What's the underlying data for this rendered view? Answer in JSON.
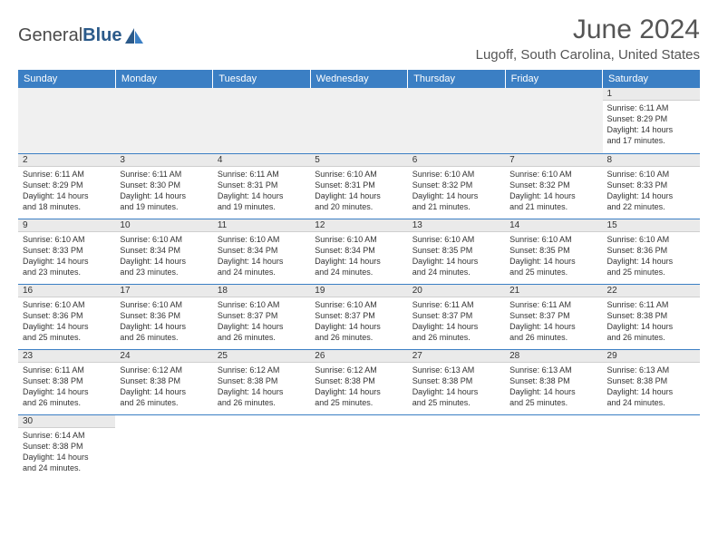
{
  "logo": {
    "text_general": "General",
    "text_blue": "Blue"
  },
  "header": {
    "month_title": "June 2024",
    "location": "Lugoff, South Carolina, United States"
  },
  "colors": {
    "header_bg": "#3b7fc4",
    "header_text": "#ffffff",
    "cell_border": "#3b7fc4",
    "daynum_bg": "#eaeaea",
    "empty_bg": "#f0f0f0",
    "text": "#333333",
    "title_text": "#555555"
  },
  "day_labels": [
    "Sunday",
    "Monday",
    "Tuesday",
    "Wednesday",
    "Thursday",
    "Friday",
    "Saturday"
  ],
  "weeks": [
    [
      null,
      null,
      null,
      null,
      null,
      null,
      {
        "n": "1",
        "sr": "Sunrise: 6:11 AM",
        "ss": "Sunset: 8:29 PM",
        "d1": "Daylight: 14 hours",
        "d2": "and 17 minutes."
      }
    ],
    [
      {
        "n": "2",
        "sr": "Sunrise: 6:11 AM",
        "ss": "Sunset: 8:29 PM",
        "d1": "Daylight: 14 hours",
        "d2": "and 18 minutes."
      },
      {
        "n": "3",
        "sr": "Sunrise: 6:11 AM",
        "ss": "Sunset: 8:30 PM",
        "d1": "Daylight: 14 hours",
        "d2": "and 19 minutes."
      },
      {
        "n": "4",
        "sr": "Sunrise: 6:11 AM",
        "ss": "Sunset: 8:31 PM",
        "d1": "Daylight: 14 hours",
        "d2": "and 19 minutes."
      },
      {
        "n": "5",
        "sr": "Sunrise: 6:10 AM",
        "ss": "Sunset: 8:31 PM",
        "d1": "Daylight: 14 hours",
        "d2": "and 20 minutes."
      },
      {
        "n": "6",
        "sr": "Sunrise: 6:10 AM",
        "ss": "Sunset: 8:32 PM",
        "d1": "Daylight: 14 hours",
        "d2": "and 21 minutes."
      },
      {
        "n": "7",
        "sr": "Sunrise: 6:10 AM",
        "ss": "Sunset: 8:32 PM",
        "d1": "Daylight: 14 hours",
        "d2": "and 21 minutes."
      },
      {
        "n": "8",
        "sr": "Sunrise: 6:10 AM",
        "ss": "Sunset: 8:33 PM",
        "d1": "Daylight: 14 hours",
        "d2": "and 22 minutes."
      }
    ],
    [
      {
        "n": "9",
        "sr": "Sunrise: 6:10 AM",
        "ss": "Sunset: 8:33 PM",
        "d1": "Daylight: 14 hours",
        "d2": "and 23 minutes."
      },
      {
        "n": "10",
        "sr": "Sunrise: 6:10 AM",
        "ss": "Sunset: 8:34 PM",
        "d1": "Daylight: 14 hours",
        "d2": "and 23 minutes."
      },
      {
        "n": "11",
        "sr": "Sunrise: 6:10 AM",
        "ss": "Sunset: 8:34 PM",
        "d1": "Daylight: 14 hours",
        "d2": "and 24 minutes."
      },
      {
        "n": "12",
        "sr": "Sunrise: 6:10 AM",
        "ss": "Sunset: 8:34 PM",
        "d1": "Daylight: 14 hours",
        "d2": "and 24 minutes."
      },
      {
        "n": "13",
        "sr": "Sunrise: 6:10 AM",
        "ss": "Sunset: 8:35 PM",
        "d1": "Daylight: 14 hours",
        "d2": "and 24 minutes."
      },
      {
        "n": "14",
        "sr": "Sunrise: 6:10 AM",
        "ss": "Sunset: 8:35 PM",
        "d1": "Daylight: 14 hours",
        "d2": "and 25 minutes."
      },
      {
        "n": "15",
        "sr": "Sunrise: 6:10 AM",
        "ss": "Sunset: 8:36 PM",
        "d1": "Daylight: 14 hours",
        "d2": "and 25 minutes."
      }
    ],
    [
      {
        "n": "16",
        "sr": "Sunrise: 6:10 AM",
        "ss": "Sunset: 8:36 PM",
        "d1": "Daylight: 14 hours",
        "d2": "and 25 minutes."
      },
      {
        "n": "17",
        "sr": "Sunrise: 6:10 AM",
        "ss": "Sunset: 8:36 PM",
        "d1": "Daylight: 14 hours",
        "d2": "and 26 minutes."
      },
      {
        "n": "18",
        "sr": "Sunrise: 6:10 AM",
        "ss": "Sunset: 8:37 PM",
        "d1": "Daylight: 14 hours",
        "d2": "and 26 minutes."
      },
      {
        "n": "19",
        "sr": "Sunrise: 6:10 AM",
        "ss": "Sunset: 8:37 PM",
        "d1": "Daylight: 14 hours",
        "d2": "and 26 minutes."
      },
      {
        "n": "20",
        "sr": "Sunrise: 6:11 AM",
        "ss": "Sunset: 8:37 PM",
        "d1": "Daylight: 14 hours",
        "d2": "and 26 minutes."
      },
      {
        "n": "21",
        "sr": "Sunrise: 6:11 AM",
        "ss": "Sunset: 8:37 PM",
        "d1": "Daylight: 14 hours",
        "d2": "and 26 minutes."
      },
      {
        "n": "22",
        "sr": "Sunrise: 6:11 AM",
        "ss": "Sunset: 8:38 PM",
        "d1": "Daylight: 14 hours",
        "d2": "and 26 minutes."
      }
    ],
    [
      {
        "n": "23",
        "sr": "Sunrise: 6:11 AM",
        "ss": "Sunset: 8:38 PM",
        "d1": "Daylight: 14 hours",
        "d2": "and 26 minutes."
      },
      {
        "n": "24",
        "sr": "Sunrise: 6:12 AM",
        "ss": "Sunset: 8:38 PM",
        "d1": "Daylight: 14 hours",
        "d2": "and 26 minutes."
      },
      {
        "n": "25",
        "sr": "Sunrise: 6:12 AM",
        "ss": "Sunset: 8:38 PM",
        "d1": "Daylight: 14 hours",
        "d2": "and 26 minutes."
      },
      {
        "n": "26",
        "sr": "Sunrise: 6:12 AM",
        "ss": "Sunset: 8:38 PM",
        "d1": "Daylight: 14 hours",
        "d2": "and 25 minutes."
      },
      {
        "n": "27",
        "sr": "Sunrise: 6:13 AM",
        "ss": "Sunset: 8:38 PM",
        "d1": "Daylight: 14 hours",
        "d2": "and 25 minutes."
      },
      {
        "n": "28",
        "sr": "Sunrise: 6:13 AM",
        "ss": "Sunset: 8:38 PM",
        "d1": "Daylight: 14 hours",
        "d2": "and 25 minutes."
      },
      {
        "n": "29",
        "sr": "Sunrise: 6:13 AM",
        "ss": "Sunset: 8:38 PM",
        "d1": "Daylight: 14 hours",
        "d2": "and 24 minutes."
      }
    ],
    [
      {
        "n": "30",
        "sr": "Sunrise: 6:14 AM",
        "ss": "Sunset: 8:38 PM",
        "d1": "Daylight: 14 hours",
        "d2": "and 24 minutes."
      },
      null,
      null,
      null,
      null,
      null,
      null
    ]
  ]
}
